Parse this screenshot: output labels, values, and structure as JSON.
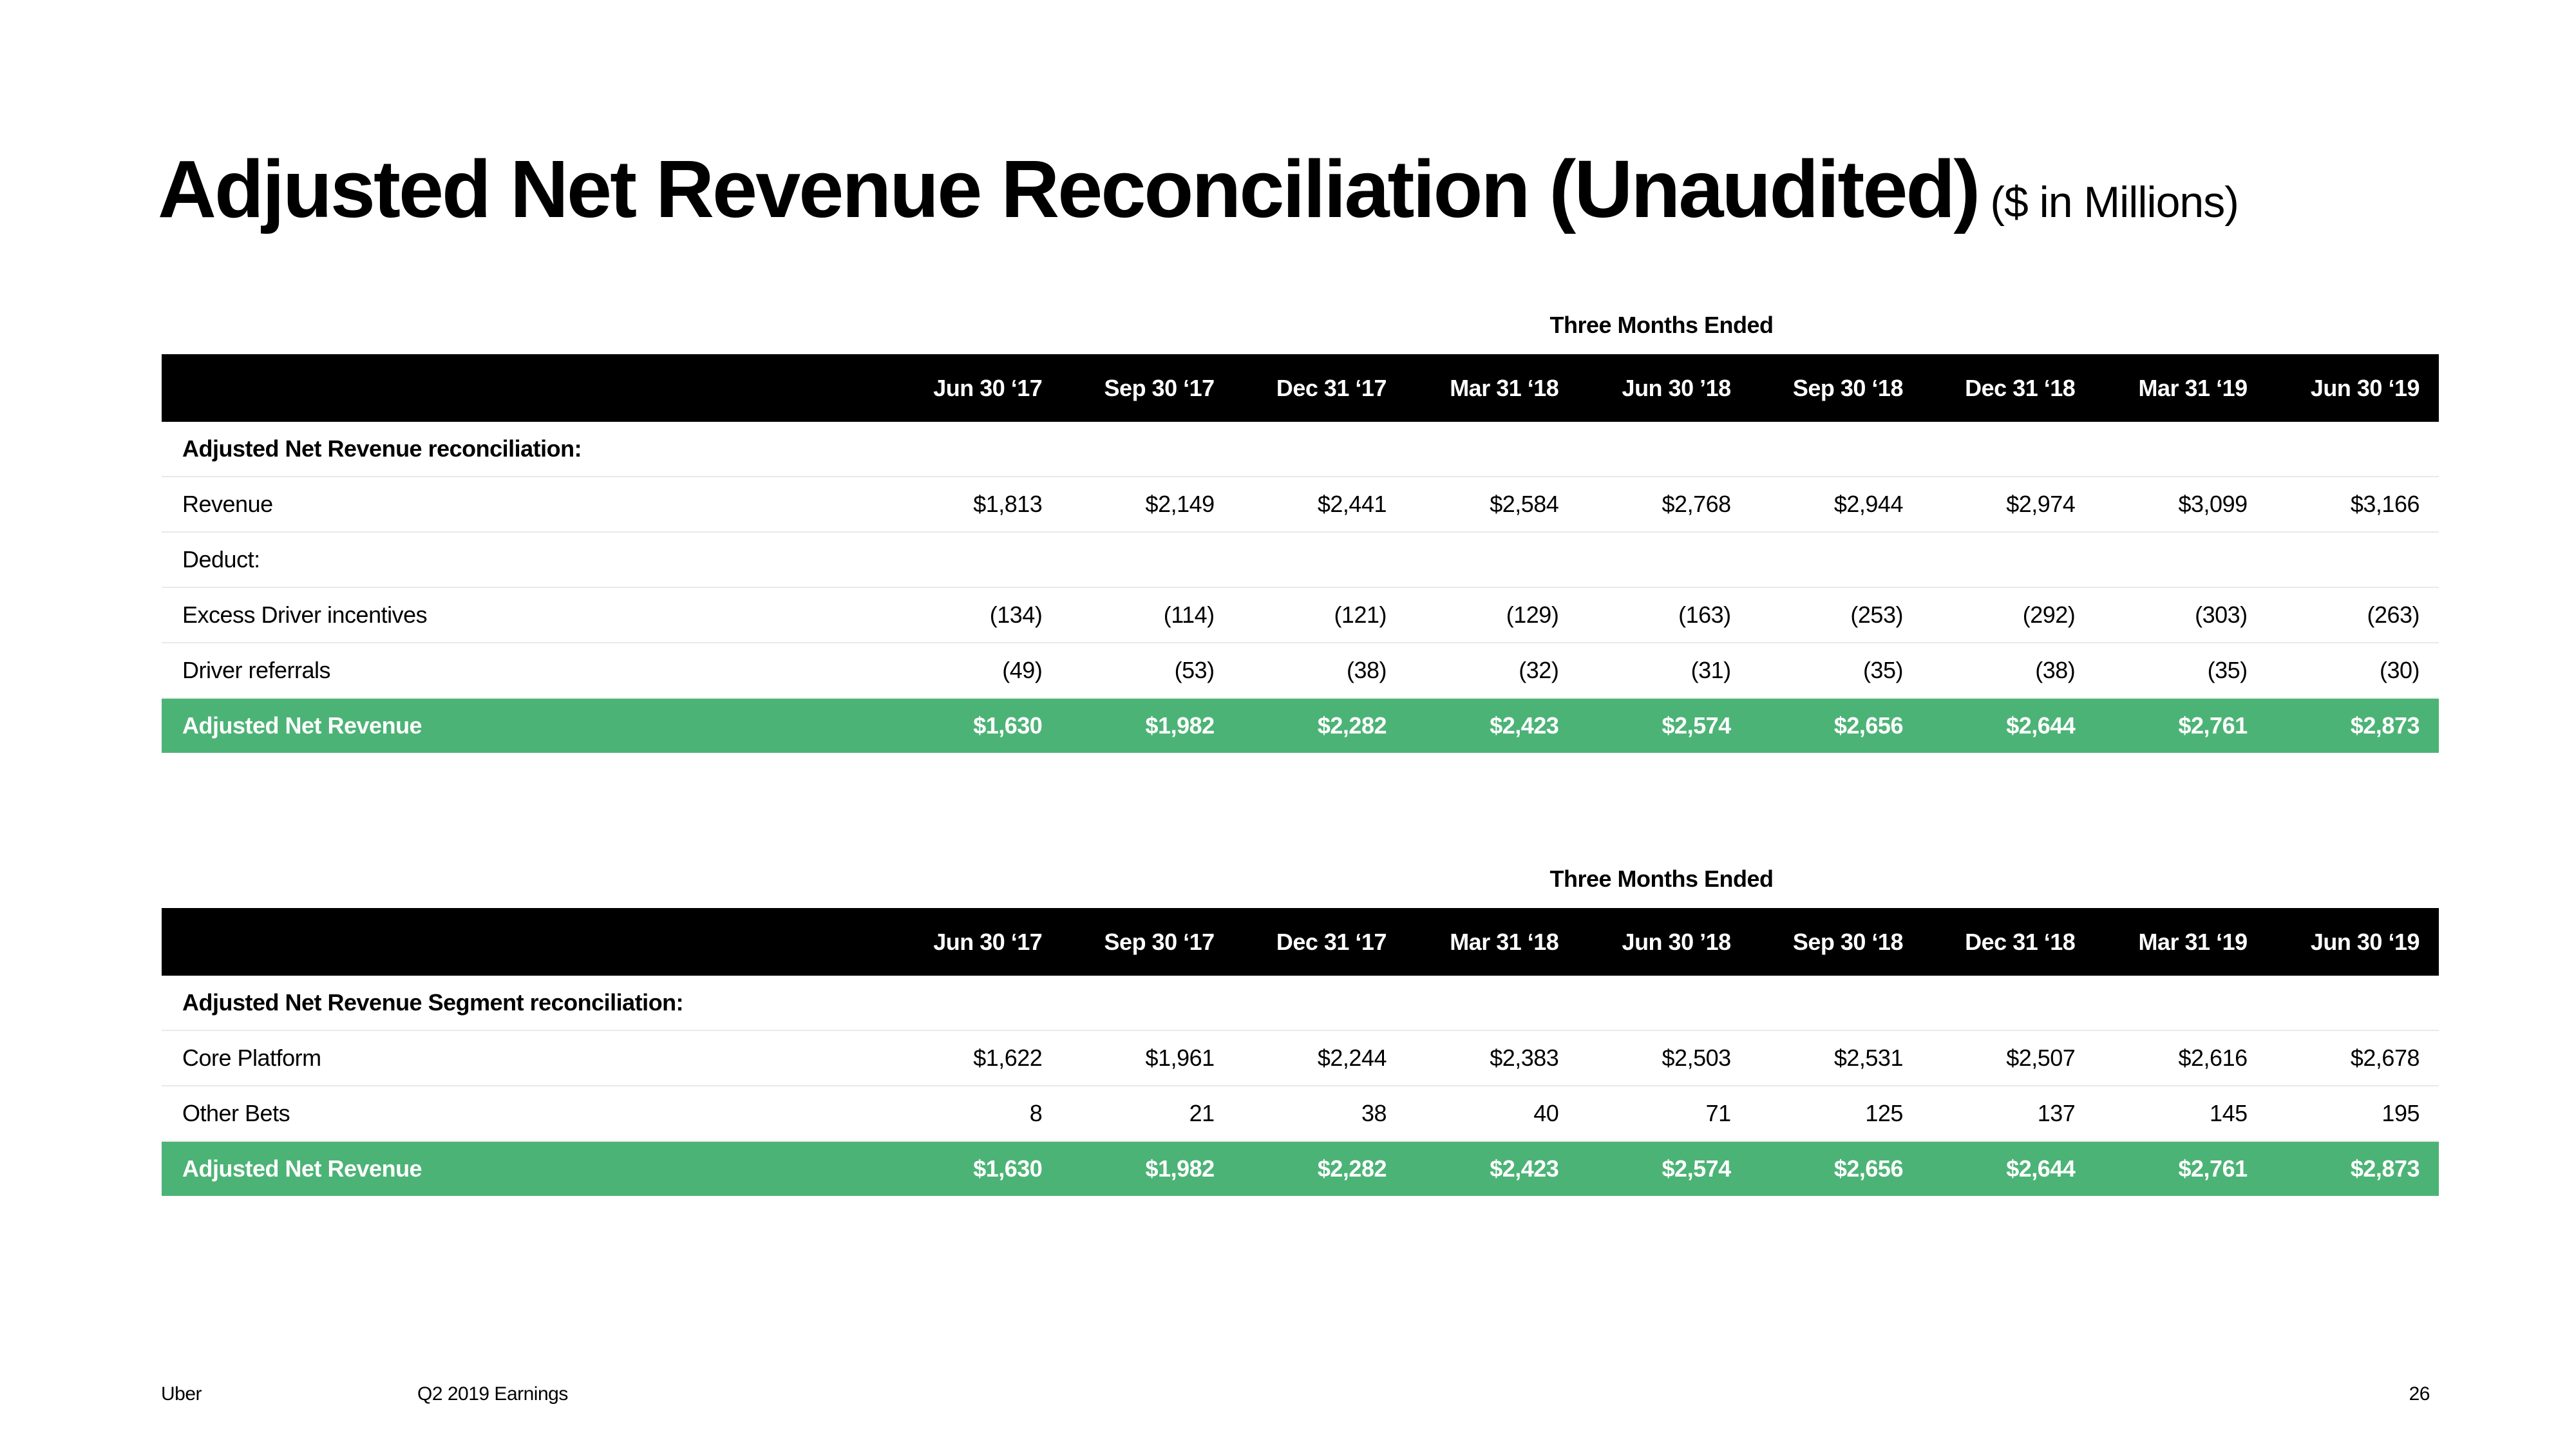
{
  "title": "Adjusted Net Revenue Reconciliation (Unaudited)",
  "subtitle": "($ in Millions)",
  "table1": {
    "period_label": "Three Months Ended",
    "columns": [
      "Jun 30 ‘17",
      "Sep 30 ‘17",
      "Dec 31 ‘17",
      "Mar 31 ‘18",
      "Jun 30 ’18",
      "Sep 30 ‘18",
      "Dec 31 ‘18",
      "Mar 31 ‘19",
      "Jun 30 ‘19"
    ],
    "section_title": "Adjusted Net Revenue reconciliation:",
    "revenue": {
      "label": "Revenue",
      "values": [
        "$1,813",
        "$2,149",
        "$2,441",
        "$2,584",
        "$2,768",
        "$2,944",
        "$2,974",
        "$3,099",
        "$3,166"
      ]
    },
    "deduct": {
      "label": "Deduct:"
    },
    "excess_driver_incentives": {
      "label": "Excess Driver incentives",
      "values": [
        "(134)",
        "(114)",
        "(121)",
        "(129)",
        "(163)",
        "(253)",
        "(292)",
        "(303)",
        "(263)"
      ]
    },
    "driver_referrals": {
      "label": "Driver referrals",
      "values": [
        "(49)",
        "(53)",
        "(38)",
        "(32)",
        "(31)",
        "(35)",
        "(38)",
        "(35)",
        "(30)"
      ]
    },
    "total": {
      "label": "Adjusted Net Revenue",
      "values": [
        "$1,630",
        "$1,982",
        "$2,282",
        "$2,423",
        "$2,574",
        "$2,656",
        "$2,644",
        "$2,761",
        "$2,873"
      ]
    }
  },
  "table2": {
    "period_label": "Three Months Ended",
    "columns": [
      "Jun 30 ‘17",
      "Sep 30 ‘17",
      "Dec 31 ‘17",
      "Mar 31 ‘18",
      "Jun 30 ’18",
      "Sep 30 ‘18",
      "Dec 31 ‘18",
      "Mar 31 ‘19",
      "Jun 30 ‘19"
    ],
    "section_title": "Adjusted Net Revenue Segment reconciliation:",
    "core_platform": {
      "label": "Core Platform",
      "values": [
        "$1,622",
        "$1,961",
        "$2,244",
        "$2,383",
        "$2,503",
        "$2,531",
        "$2,507",
        "$2,616",
        "$2,678"
      ]
    },
    "other_bets": {
      "label": "Other Bets",
      "values": [
        "8",
        "21",
        "38",
        "40",
        "71",
        "125",
        "137",
        "145",
        "195"
      ]
    },
    "total": {
      "label": "Adjusted Net Revenue",
      "values": [
        "$1,630",
        "$1,982",
        "$2,282",
        "$2,423",
        "$2,574",
        "$2,656",
        "$2,644",
        "$2,761",
        "$2,873"
      ]
    }
  },
  "footer": {
    "brand": "Uber",
    "report": "Q2 2019 Earnings",
    "page_number": "26"
  },
  "colors": {
    "total_row_bg": "#4cb376",
    "header_bg": "#000000"
  }
}
